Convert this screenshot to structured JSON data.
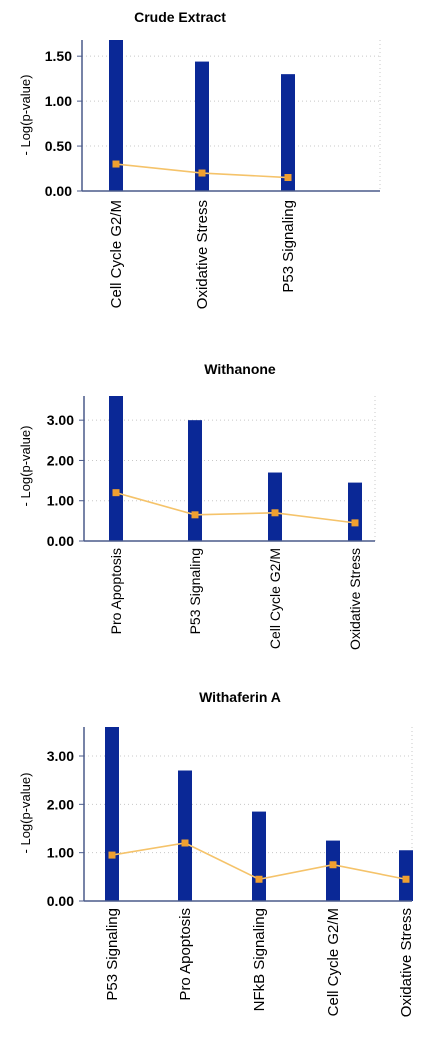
{
  "colors": {
    "bar": "#0a2896",
    "line": "#f5c36a",
    "marker": "#f0a030",
    "axis": "#4a5a8a",
    "grid": "#c8c8c8"
  },
  "chart_data": [
    {
      "type": "bar",
      "title": "Crude Extract",
      "ylabel": "- Log(p-value)",
      "categories": [
        "Cell Cycle G2/M",
        "Oxidative Stress",
        "P53  Signaling"
      ],
      "values": [
        1.68,
        1.44,
        1.3
      ],
      "ratio": [
        0.3,
        0.2,
        0.15
      ],
      "ylim": [
        0,
        1.68
      ],
      "ticks": [
        0.0,
        0.5,
        1.0,
        1.5
      ],
      "tick_labels": [
        "0.00",
        "0.50",
        "1.00",
        "1.50"
      ],
      "grid": true,
      "legend": "none"
    },
    {
      "type": "bar",
      "title": "Withanone",
      "ylabel": "- Log(p-value)",
      "categories": [
        "Pro Apoptosis",
        "P53  Signaling",
        "Cell Cycle G2/M",
        "Oxidative Stress"
      ],
      "values": [
        3.6,
        3.0,
        1.7,
        1.45
      ],
      "ratio": [
        1.2,
        0.65,
        0.7,
        0.45
      ],
      "ylim": [
        0,
        3.6
      ],
      "ticks": [
        0.0,
        1.0,
        2.0,
        3.0
      ],
      "tick_labels": [
        "0.00",
        "1.00",
        "2.00",
        "3.00"
      ],
      "grid": true,
      "legend": "none"
    },
    {
      "type": "bar",
      "title": "Withaferin A",
      "ylabel": "- Log(p-value)",
      "categories": [
        "P53  Signaling",
        "Pro Apoptosis",
        "NFkB Signaling",
        "Cell Cycle G2/M",
        "Oxidative Stress"
      ],
      "values": [
        3.6,
        2.7,
        1.85,
        1.25,
        1.05
      ],
      "ratio": [
        0.95,
        1.2,
        0.45,
        0.75,
        0.45
      ],
      "ylim": [
        0,
        3.6
      ],
      "ticks": [
        0.0,
        1.0,
        2.0,
        3.0
      ],
      "tick_labels": [
        "0.00",
        "1.00",
        "2.00",
        "3.00"
      ],
      "grid": true,
      "legend": "none"
    }
  ]
}
